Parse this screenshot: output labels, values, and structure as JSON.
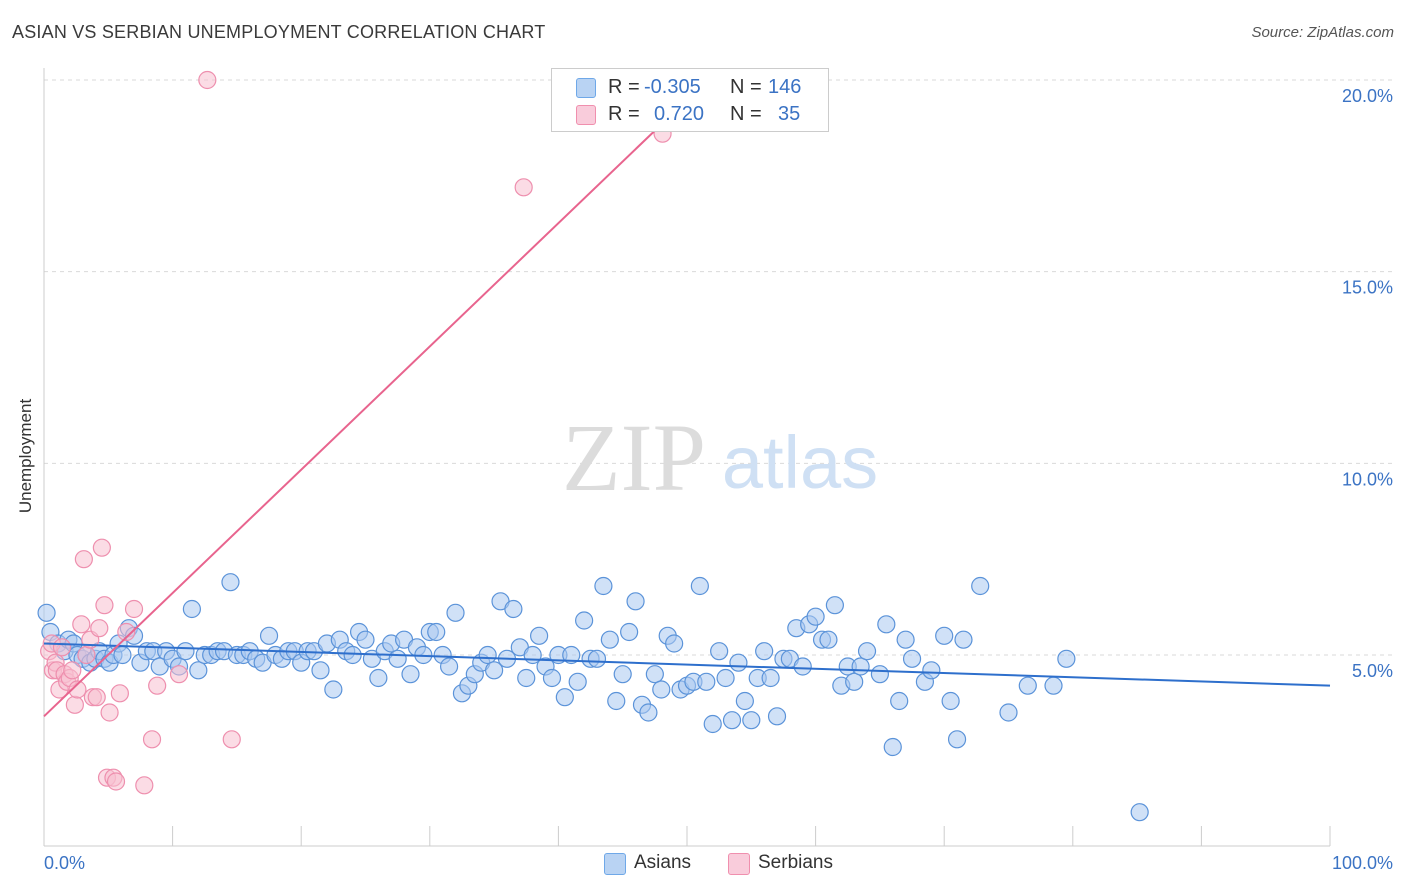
{
  "header": {
    "title": "ASIAN VS SERBIAN UNEMPLOYMENT CORRELATION CHART",
    "source": "Source: ZipAtlas.com"
  },
  "watermark": {
    "zip": "ZIP",
    "atlas": "atlas"
  },
  "legend": {
    "rows": [
      {
        "r_label": "R =",
        "r_value": "-0.305",
        "n_label": "N =",
        "n_value": "146",
        "color": "#6fa8e8"
      },
      {
        "r_label": "R =",
        "r_value": "0.720",
        "n_label": "N =",
        "n_value": "35",
        "color": "#f08fae"
      }
    ]
  },
  "bottom_legend": {
    "asians": "Asians",
    "serbians": "Serbians"
  },
  "colors": {
    "asians_fill": "#a9c8f0",
    "asians_stroke": "#5b93d9",
    "asians_line": "#2e6fcc",
    "serbians_fill": "#f7bfd0",
    "serbians_stroke": "#ee8fae",
    "serbians_line": "#e8648e",
    "tick_label": "#3b73c4"
  },
  "chart_data": {
    "type": "scatter",
    "xlabel": "",
    "ylabel": "Unemployment",
    "xlim": [
      0,
      100
    ],
    "ylim": [
      0,
      20.5
    ],
    "x_tick_labels": [
      "0.0%",
      "100.0%"
    ],
    "y_ticks": [
      5,
      10,
      15,
      20
    ],
    "y_tick_labels": [
      "5.0%",
      "10.0%",
      "15.0%",
      "20.0%"
    ],
    "grid": "horizontal dashed",
    "legend_placement": "top-center",
    "series": [
      {
        "name": "Asians",
        "trend": {
          "x": [
            0,
            100
          ],
          "y": [
            5.3,
            4.2
          ]
        },
        "points": [
          [
            0.2,
            6.1
          ],
          [
            0.5,
            5.6
          ],
          [
            1.1,
            5.3
          ],
          [
            1.6,
            5.1
          ],
          [
            1.9,
            5.4
          ],
          [
            2.3,
            5.3
          ],
          [
            2.6,
            5.0
          ],
          [
            3.0,
            4.9
          ],
          [
            3.3,
            5.0
          ],
          [
            3.6,
            4.8
          ],
          [
            4.0,
            4.9
          ],
          [
            4.3,
            5.1
          ],
          [
            4.7,
            4.9
          ],
          [
            5.1,
            4.8
          ],
          [
            5.4,
            5.0
          ],
          [
            5.8,
            5.3
          ],
          [
            6.1,
            5.0
          ],
          [
            6.6,
            5.7
          ],
          [
            7.0,
            5.5
          ],
          [
            7.5,
            4.8
          ],
          [
            8.0,
            5.1
          ],
          [
            8.5,
            5.1
          ],
          [
            9.0,
            4.7
          ],
          [
            9.5,
            5.1
          ],
          [
            10.0,
            4.9
          ],
          [
            10.5,
            4.7
          ],
          [
            11.0,
            5.1
          ],
          [
            11.5,
            6.2
          ],
          [
            12.0,
            4.6
          ],
          [
            12.5,
            5.0
          ],
          [
            13.0,
            5.0
          ],
          [
            13.5,
            5.1
          ],
          [
            14.0,
            5.1
          ],
          [
            14.5,
            6.9
          ],
          [
            15.0,
            5.0
          ],
          [
            15.5,
            5.0
          ],
          [
            16.0,
            5.1
          ],
          [
            16.5,
            4.9
          ],
          [
            17.0,
            4.8
          ],
          [
            17.5,
            5.5
          ],
          [
            18.0,
            5.0
          ],
          [
            18.5,
            4.9
          ],
          [
            19.0,
            5.1
          ],
          [
            19.5,
            5.1
          ],
          [
            20.0,
            4.8
          ],
          [
            20.5,
            5.1
          ],
          [
            21.0,
            5.1
          ],
          [
            21.5,
            4.6
          ],
          [
            22.0,
            5.3
          ],
          [
            22.5,
            4.1
          ],
          [
            23.0,
            5.4
          ],
          [
            23.5,
            5.1
          ],
          [
            24.0,
            5.0
          ],
          [
            24.5,
            5.6
          ],
          [
            25.0,
            5.4
          ],
          [
            25.5,
            4.9
          ],
          [
            26.0,
            4.4
          ],
          [
            26.5,
            5.1
          ],
          [
            27.0,
            5.3
          ],
          [
            27.5,
            4.9
          ],
          [
            28.0,
            5.4
          ],
          [
            28.5,
            4.5
          ],
          [
            29.0,
            5.2
          ],
          [
            29.5,
            5.0
          ],
          [
            30.0,
            5.6
          ],
          [
            30.5,
            5.6
          ],
          [
            31.0,
            5.0
          ],
          [
            31.5,
            4.7
          ],
          [
            32.0,
            6.1
          ],
          [
            32.5,
            4.0
          ],
          [
            33.0,
            4.2
          ],
          [
            33.5,
            4.5
          ],
          [
            34.0,
            4.8
          ],
          [
            34.5,
            5.0
          ],
          [
            35.0,
            4.6
          ],
          [
            35.5,
            6.4
          ],
          [
            36.0,
            4.9
          ],
          [
            36.5,
            6.2
          ],
          [
            37.0,
            5.2
          ],
          [
            37.5,
            4.4
          ],
          [
            38.0,
            5.0
          ],
          [
            38.5,
            5.5
          ],
          [
            39.0,
            4.7
          ],
          [
            39.5,
            4.4
          ],
          [
            40.0,
            5.0
          ],
          [
            40.5,
            3.9
          ],
          [
            41.0,
            5.0
          ],
          [
            41.5,
            4.3
          ],
          [
            42.0,
            5.9
          ],
          [
            42.5,
            4.9
          ],
          [
            43.0,
            4.9
          ],
          [
            43.5,
            6.8
          ],
          [
            44.0,
            5.4
          ],
          [
            44.5,
            3.8
          ],
          [
            45.0,
            4.5
          ],
          [
            45.5,
            5.6
          ],
          [
            46.0,
            6.4
          ],
          [
            46.5,
            3.7
          ],
          [
            47.0,
            3.5
          ],
          [
            47.5,
            4.5
          ],
          [
            48.0,
            4.1
          ],
          [
            48.5,
            5.5
          ],
          [
            49.0,
            5.3
          ],
          [
            49.5,
            4.1
          ],
          [
            50.0,
            4.2
          ],
          [
            50.5,
            4.3
          ],
          [
            51.0,
            6.8
          ],
          [
            51.5,
            4.3
          ],
          [
            52.0,
            3.2
          ],
          [
            52.5,
            5.1
          ],
          [
            53.0,
            4.4
          ],
          [
            53.5,
            3.3
          ],
          [
            54.0,
            4.8
          ],
          [
            54.5,
            3.8
          ],
          [
            55.0,
            3.3
          ],
          [
            55.5,
            4.4
          ],
          [
            56.0,
            5.1
          ],
          [
            56.5,
            4.4
          ],
          [
            57.0,
            3.4
          ],
          [
            57.5,
            4.9
          ],
          [
            58.0,
            4.9
          ],
          [
            58.5,
            5.7
          ],
          [
            59.0,
            4.7
          ],
          [
            59.5,
            5.8
          ],
          [
            60.0,
            6.0
          ],
          [
            60.5,
            5.4
          ],
          [
            61.0,
            5.4
          ],
          [
            61.5,
            6.3
          ],
          [
            62.0,
            4.2
          ],
          [
            62.5,
            4.7
          ],
          [
            63.0,
            4.3
          ],
          [
            63.5,
            4.7
          ],
          [
            64.0,
            5.1
          ],
          [
            65.0,
            4.5
          ],
          [
            65.5,
            5.8
          ],
          [
            66.0,
            2.6
          ],
          [
            66.5,
            3.8
          ],
          [
            67.0,
            5.4
          ],
          [
            67.5,
            4.9
          ],
          [
            68.5,
            4.3
          ],
          [
            69.0,
            4.6
          ],
          [
            70.0,
            5.5
          ],
          [
            70.5,
            3.8
          ],
          [
            71.0,
            2.8
          ],
          [
            71.5,
            5.4
          ],
          [
            72.8,
            6.8
          ],
          [
            75.0,
            3.5
          ],
          [
            76.5,
            4.2
          ],
          [
            78.5,
            4.2
          ],
          [
            79.5,
            4.9
          ],
          [
            85.2,
            0.9
          ]
        ]
      },
      {
        "name": "Serbians",
        "trend": {
          "x": [
            0,
            48.5
          ],
          "y": [
            3.4,
            19.0
          ]
        },
        "points": [
          [
            0.4,
            5.1
          ],
          [
            0.6,
            5.3
          ],
          [
            0.7,
            4.6
          ],
          [
            0.9,
            4.8
          ],
          [
            1.0,
            4.6
          ],
          [
            1.2,
            4.1
          ],
          [
            1.4,
            5.2
          ],
          [
            1.6,
            4.5
          ],
          [
            1.8,
            4.3
          ],
          [
            2.0,
            4.4
          ],
          [
            2.2,
            4.6
          ],
          [
            2.4,
            3.7
          ],
          [
            2.6,
            4.1
          ],
          [
            2.9,
            5.8
          ],
          [
            3.1,
            7.5
          ],
          [
            3.3,
            5.0
          ],
          [
            3.6,
            5.4
          ],
          [
            3.8,
            3.9
          ],
          [
            4.1,
            3.9
          ],
          [
            4.3,
            5.7
          ],
          [
            4.5,
            7.8
          ],
          [
            4.7,
            6.3
          ],
          [
            4.9,
            1.8
          ],
          [
            5.1,
            3.5
          ],
          [
            5.4,
            1.8
          ],
          [
            5.6,
            1.7
          ],
          [
            5.9,
            4.0
          ],
          [
            6.4,
            5.6
          ],
          [
            7.0,
            6.2
          ],
          [
            7.8,
            1.6
          ],
          [
            8.4,
            2.8
          ],
          [
            8.8,
            4.2
          ],
          [
            10.5,
            4.5
          ],
          [
            12.7,
            20.0
          ],
          [
            14.6,
            2.8
          ],
          [
            37.3,
            17.2
          ],
          [
            48.1,
            18.6
          ]
        ]
      }
    ]
  }
}
